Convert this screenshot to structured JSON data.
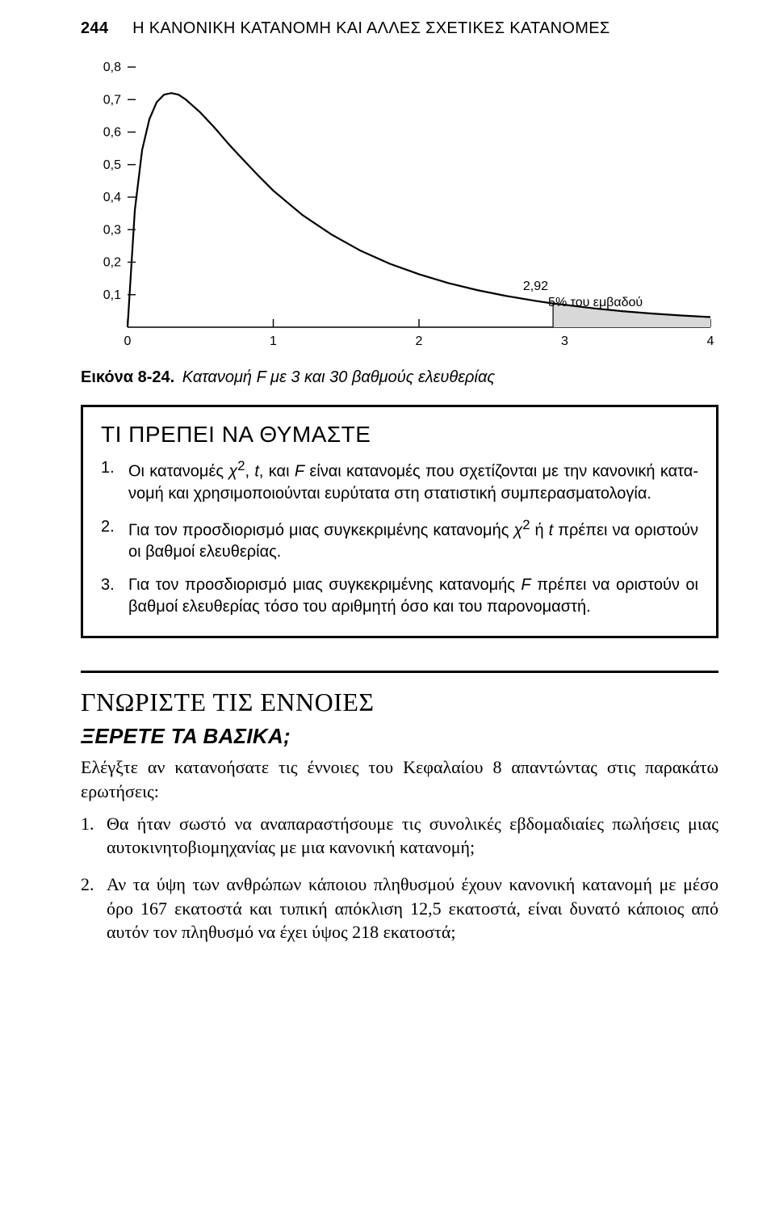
{
  "header": {
    "page_number": "244",
    "running_title": "Η ΚΑΝΟΝΙΚΗ ΚΑΤΑΝΟΜΗ ΚΑΙ ΑΛΛΕΣ ΣΧΕΤΙΚΕΣ ΚΑΤΑΝΟΜΕΣ"
  },
  "figure": {
    "type": "line",
    "caption_label": "Εικόνα 8-24.",
    "caption_text": "Κατανομή F με 3 και 30 βαθμούς ελευθερίας",
    "annotation_value": "2,92",
    "annotation_text": "5% του εμβαδού",
    "xlim": [
      0,
      4
    ],
    "ylim": [
      0,
      0.8
    ],
    "xticks": [
      0,
      1,
      2,
      3,
      4
    ],
    "yticks_labels": [
      "0,1",
      "0,2",
      "0,3",
      "0,4",
      "0,5",
      "0,6",
      "0,7",
      "0,8"
    ],
    "yticks_values": [
      0.1,
      0.2,
      0.3,
      0.4,
      0.5,
      0.6,
      0.7,
      0.8
    ],
    "critical_x": 2.92,
    "curve": [
      [
        0.0,
        0.0
      ],
      [
        0.05,
        0.36
      ],
      [
        0.1,
        0.545
      ],
      [
        0.15,
        0.64
      ],
      [
        0.2,
        0.692
      ],
      [
        0.25,
        0.715
      ],
      [
        0.3,
        0.72
      ],
      [
        0.35,
        0.715
      ],
      [
        0.4,
        0.7
      ],
      [
        0.5,
        0.66
      ],
      [
        0.6,
        0.612
      ],
      [
        0.7,
        0.56
      ],
      [
        0.8,
        0.512
      ],
      [
        0.9,
        0.465
      ],
      [
        1.0,
        0.42
      ],
      [
        1.2,
        0.345
      ],
      [
        1.4,
        0.285
      ],
      [
        1.6,
        0.235
      ],
      [
        1.8,
        0.195
      ],
      [
        2.0,
        0.163
      ],
      [
        2.2,
        0.136
      ],
      [
        2.4,
        0.114
      ],
      [
        2.6,
        0.096
      ],
      [
        2.8,
        0.081
      ],
      [
        2.92,
        0.073
      ],
      [
        3.0,
        0.069
      ],
      [
        3.2,
        0.058
      ],
      [
        3.4,
        0.049
      ],
      [
        3.6,
        0.042
      ],
      [
        3.8,
        0.036
      ],
      [
        4.0,
        0.031
      ]
    ],
    "axis_color": "#000000",
    "curve_color": "#000000",
    "curve_width": 2.2,
    "tail_fill": "#d8d8d8",
    "tick_fontsize": 16,
    "annotation_fontsize": 16
  },
  "remember": {
    "title": "ΤΙ ΠΡΕΠΕΙ ΝΑ ΘΥΜΑΣΤΕ",
    "items": [
      {
        "t1": "Οι κατανομές ",
        "t2": ", και ",
        "t3": " είναι κατανομές που σχετίζονται με την κανονική κατα­νομή και χρησιμοποιούνται ευρύτατα στη στατιστική συμπερασματολογία.",
        "sym_chi": "χ",
        "sym_sq": "2",
        "sym_t": "t",
        "sym_F": "F"
      },
      {
        "t1": "Για τον προσδιορισμό μιας συγκεκριμένης κατανομής ",
        "t2": " ή ",
        "t3": " πρέπει να οριστούν οι βαθμοί ελευθερίας.",
        "sym_chi": "χ",
        "sym_sq": "2",
        "sym_t": "t"
      },
      {
        "t1": "Για τον προσδιορισμό μιας συγκεκριμένης κατανομής ",
        "t2": " πρέπει να οριστούν οι βαθμοί ελευθερίας τόσο του αριθμητή όσο και του παρονομαστή.",
        "sym_F": "F"
      }
    ]
  },
  "concepts": {
    "title": "ΓΝΩΡΙΣΤΕ ΤΙΣ ΕΝΝΟΙΕΣ",
    "subtitle": "ΞΕΡΕΤΕ ΤΑ ΒΑΣΙΚΑ;",
    "intro": "Ελέγξτε αν κατανοήσατε τις έννοιες του Κεφαλαίου 8 απαντώντας στις παρακάτω ερωτήσεις:",
    "questions": [
      "Θα ήταν σωστό να αναπαραστήσουμε τις συνολικές εβδομαδιαίες πωλήσεις μιας αυτοκινητοβιομηχανίας με μια κανονική κατανομή;",
      "Αν τα ύψη των ανθρώπων κάποιου πληθυσμού έχουν κανονική κατανομή με μέσο όρο 167 εκατοστά και τυπική απόκλιση 12,5 εκατοστά, είναι δυνατό κά­ποιος από αυτόν τον πληθυσμό να έχει ύψος 218 εκατοστά;"
    ]
  }
}
